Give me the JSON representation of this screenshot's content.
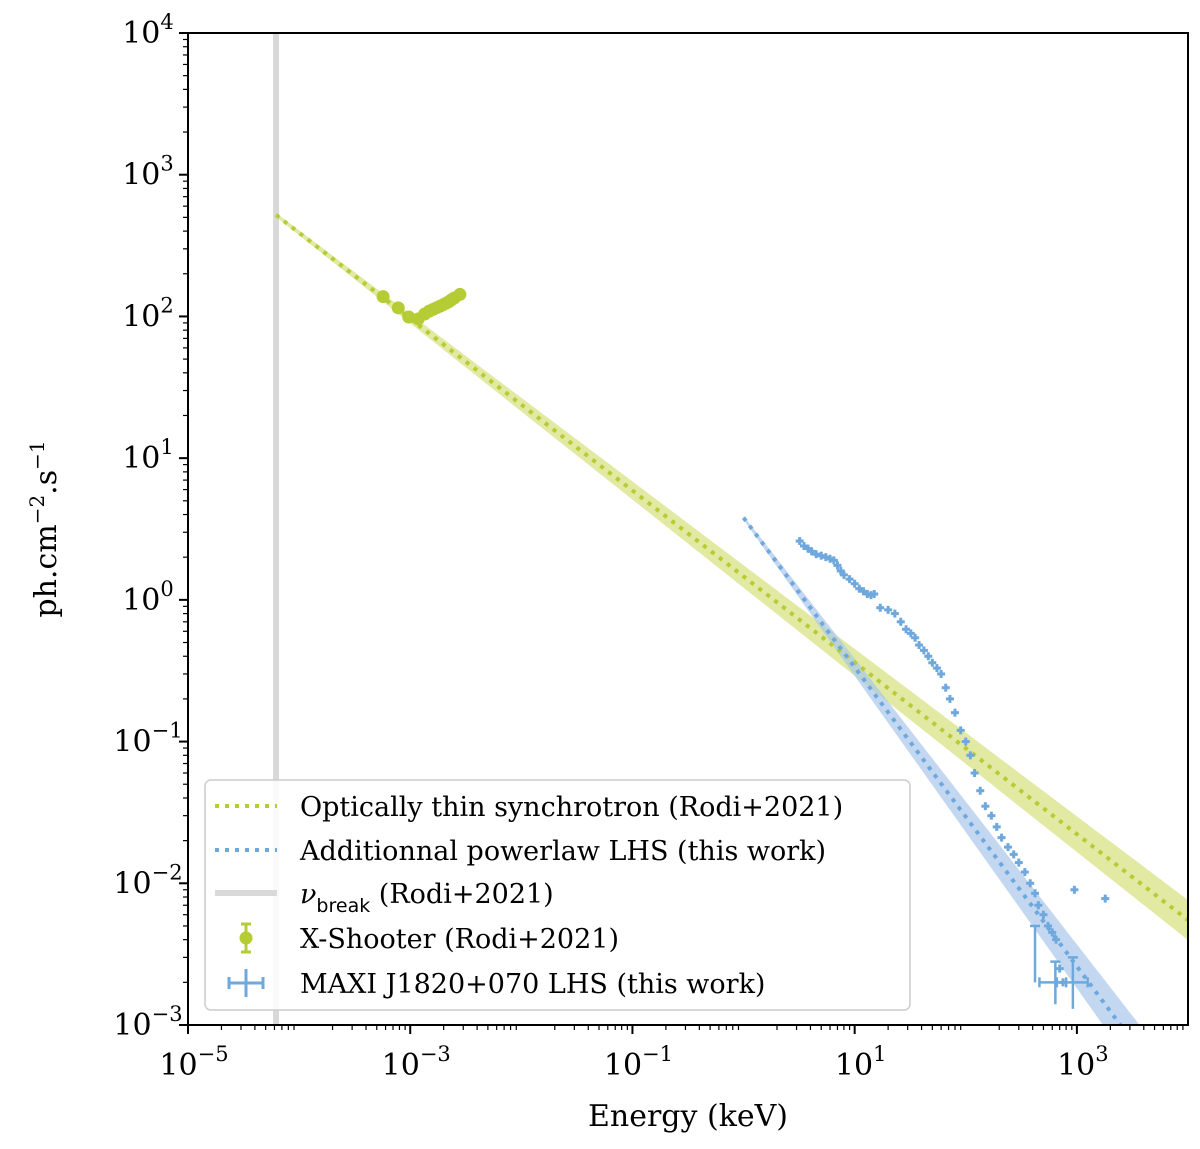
{
  "chart_data": {
    "type": "scatter",
    "xlabel": "Energy (keV)",
    "ylabel_html": "ph.cm<tspan baseline-shift='super' font-size='20'>−2</tspan>.s<tspan baseline-shift='super' font-size='20'>−1</tspan>",
    "ylabel_text": "ph.cm−2.s−1",
    "xscale": "log",
    "yscale": "log",
    "xlim": [
      1e-05,
      10000
    ],
    "ylim": [
      0.001,
      10000
    ],
    "x_ticks": [
      {
        "value": 1e-05,
        "base": "10",
        "exp": "−5"
      },
      {
        "value": 0.001,
        "base": "10",
        "exp": "−3"
      },
      {
        "value": 0.1,
        "base": "10",
        "exp": "−1"
      },
      {
        "value": 10,
        "base": "10",
        "exp": "1"
      },
      {
        "value": 1000,
        "base": "10",
        "exp": "3"
      }
    ],
    "y_ticks": [
      {
        "value": 0.001,
        "base": "10",
        "exp": "−3"
      },
      {
        "value": 0.01,
        "base": "10",
        "exp": "−2"
      },
      {
        "value": 0.1,
        "base": "10",
        "exp": "−1"
      },
      {
        "value": 1,
        "base": "10",
        "exp": "0"
      },
      {
        "value": 10,
        "base": "10",
        "exp": "1"
      },
      {
        "value": 100,
        "base": "10",
        "exp": "2"
      },
      {
        "value": 1000,
        "base": "10",
        "exp": "3"
      },
      {
        "value": 10000,
        "base": "10",
        "exp": "4"
      }
    ],
    "grid": false,
    "legend_position": "bottom-left",
    "colors": {
      "synchrotron": "#b5cc34",
      "synchrotron_band": "#d4e07a",
      "lhs": "#6fa8dc",
      "lhs_band": "#a9c8ea",
      "break": "#d9d9d9"
    },
    "vertical_line": {
      "name": "ν_break (Rodi+2021)",
      "x": 6.2e-05
    },
    "synchrotron_model": {
      "name": "Optically thin synchrotron (Rodi+2021)",
      "x_start": 6.2e-05,
      "y_start": 520,
      "x_end": 10000,
      "y_end": 0.0055
    },
    "lhs_model": {
      "name": "Additionnal powerlaw LHS (this work)",
      "x_start": 1,
      "y_start": 3.8,
      "x_end": 4000,
      "y_end": 0.0006
    },
    "xshooter": {
      "name": "X-Shooter (Rodi+2021)",
      "x": [
        0.00057,
        0.00078,
        0.00097,
        0.00118,
        0.00135,
        0.00148,
        0.0016,
        0.00172,
        0.00185,
        0.00198,
        0.0021,
        0.00222,
        0.00235,
        0.0025,
        0.0028
      ],
      "y": [
        138,
        115,
        99,
        96,
        104,
        109,
        112,
        115,
        118,
        121,
        124,
        127,
        131,
        135,
        143
      ]
    },
    "maxi": {
      "name": "MAXI J1820+070 LHS (this work)",
      "x": [
        3.2,
        3.5,
        3.8,
        4.1,
        4.5,
        5.0,
        5.5,
        6.0,
        6.5,
        7.0,
        7.5,
        8.0,
        9.0,
        10.0,
        11.0,
        12.0,
        13.0,
        14.0,
        15.0,
        17.0,
        20.0,
        23.0,
        26.0,
        29.0,
        32.0,
        35.0,
        38.0,
        42.0,
        46.0,
        50.0,
        55.0,
        60.0,
        66.0,
        72.0,
        80.0,
        90.0,
        100.0,
        110.0,
        120.0,
        135.0,
        150.0,
        170.0,
        190.0,
        210.0,
        240.0,
        270.0,
        300.0,
        340.0,
        380.0,
        420.0,
        450.0,
        500.0,
        550.0,
        600.0,
        650.0,
        700.0,
        750.0,
        950.0,
        1800.0
      ],
      "y": [
        2.6,
        2.4,
        2.3,
        2.2,
        2.1,
        2.05,
        2.0,
        1.95,
        1.9,
        1.75,
        1.6,
        1.5,
        1.4,
        1.3,
        1.2,
        1.15,
        1.1,
        1.08,
        1.1,
        0.88,
        0.85,
        0.8,
        0.7,
        0.62,
        0.58,
        0.54,
        0.48,
        0.44,
        0.4,
        0.36,
        0.33,
        0.3,
        0.24,
        0.2,
        0.16,
        0.12,
        0.1,
        0.08,
        0.06,
        0.045,
        0.035,
        0.03,
        0.025,
        0.021,
        0.018,
        0.016,
        0.014,
        0.012,
        0.01,
        0.0085,
        0.007,
        0.006,
        0.005,
        0.0045,
        0.004,
        0.0025,
        0.002,
        0.009,
        0.0078
      ]
    },
    "maxi_errorbars": [
      {
        "x": 420,
        "y": 0.003,
        "ylo": 0.002,
        "yhi": 0.005
      },
      {
        "x": 640,
        "y": 0.002,
        "ylo": 0.0014,
        "yhi": 0.0028,
        "xlo": 460,
        "xhi": 800
      },
      {
        "x": 920,
        "y": 0.002,
        "ylo": 0.0013,
        "yhi": 0.003,
        "xlo": 660,
        "xhi": 1250
      }
    ],
    "legend": [
      {
        "key": "synchrotron",
        "label": "Optically thin synchrotron (Rodi+2021)"
      },
      {
        "key": "lhs",
        "label": "Additionnal powerlaw LHS (this work)"
      },
      {
        "key": "break",
        "label_main": "ν",
        "label_sub": "break",
        "label_rest": " (Rodi+2021)"
      },
      {
        "key": "xshooter",
        "label": "X-Shooter (Rodi+2021)"
      },
      {
        "key": "maxi",
        "label": "MAXI J1820+070 LHS (this work)"
      }
    ]
  }
}
